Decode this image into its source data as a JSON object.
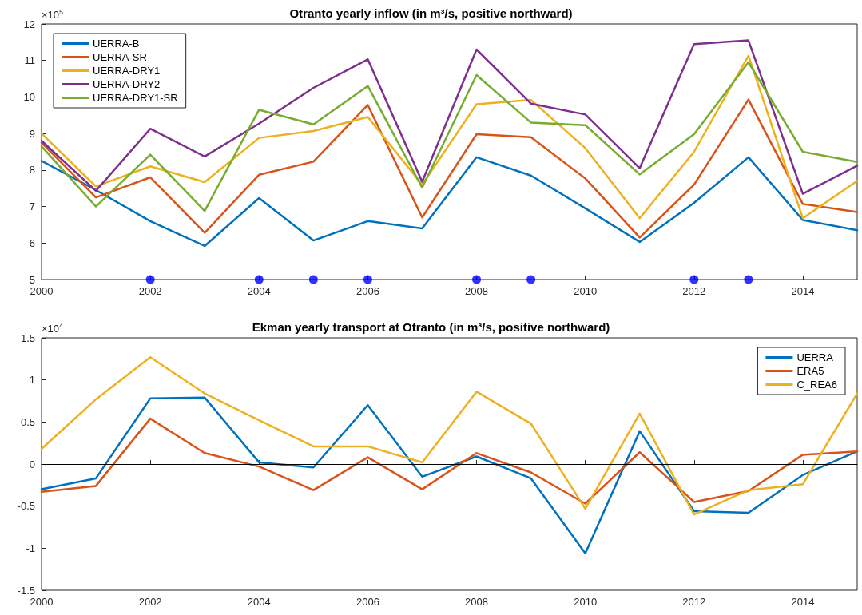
{
  "chart_data": [
    {
      "type": "line",
      "title": "Otranto yearly inflow (in m³/s, positive northward)",
      "annotations": [
        "×10$^{5}$"
      ],
      "x": [
        2000,
        2001,
        2002,
        2003,
        2004,
        2005,
        2006,
        2007,
        2008,
        2009,
        2010,
        2011,
        2012,
        2013,
        2014,
        2015
      ],
      "xlim": [
        2000,
        2015
      ],
      "xticks": [
        2000,
        2002,
        2004,
        2006,
        2008,
        2010,
        2012,
        2014
      ],
      "ylim": [
        5,
        12
      ],
      "yticks": [
        5,
        6,
        7,
        8,
        9,
        10,
        11,
        12
      ],
      "grid": false,
      "legend": "top left",
      "marker": "none",
      "line_style": "solid",
      "series": [
        {
          "name": "UERRA-B",
          "color": "#0072bd",
          "values": [
            8.25,
            7.45,
            6.6,
            5.92,
            7.23,
            6.07,
            6.6,
            6.4,
            8.35,
            7.85,
            6.95,
            6.03,
            7.1,
            8.35,
            6.63,
            6.35
          ]
        },
        {
          "name": "UERRA-SR",
          "color": "#d95319",
          "values": [
            8.75,
            7.25,
            7.8,
            6.28,
            7.87,
            8.23,
            9.78,
            6.7,
            8.98,
            8.9,
            7.77,
            6.15,
            7.6,
            9.93,
            7.07,
            6.85
          ]
        },
        {
          "name": "UERRA-DRY1",
          "color": "#edb120",
          "values": [
            9.0,
            7.55,
            8.1,
            7.67,
            8.88,
            9.07,
            9.45,
            7.6,
            9.8,
            9.92,
            8.6,
            6.68,
            8.5,
            11.13,
            6.68,
            7.7
          ]
        },
        {
          "name": "UERRA-DRY2",
          "color": "#7e2f8e",
          "values": [
            8.8,
            7.43,
            9.13,
            8.37,
            9.27,
            10.25,
            11.03,
            7.68,
            11.3,
            9.82,
            9.52,
            8.05,
            11.45,
            11.55,
            7.35,
            8.12
          ]
        },
        {
          "name": "UERRA-DRY1-SR",
          "color": "#77ac30",
          "values": [
            8.65,
            7.0,
            8.42,
            6.88,
            9.65,
            9.25,
            10.3,
            7.52,
            10.6,
            9.3,
            9.23,
            7.88,
            8.98,
            10.95,
            8.5,
            8.22
          ]
        },
        {
          "type": "scatter",
          "marker": "circle",
          "color": "#0000ff",
          "x": [
            2002,
            2004,
            2005,
            2006,
            2008,
            2009,
            2012,
            2013
          ],
          "values": [
            5,
            5,
            5,
            5,
            5,
            5,
            5,
            5
          ]
        }
      ]
    },
    {
      "type": "line",
      "title": "Ekman yearly transport at Otranto (in m³/s, positive northward)",
      "annotations": [
        "×10$^{4}$"
      ],
      "x": [
        2000,
        2001,
        2002,
        2003,
        2004,
        2005,
        2006,
        2007,
        2008,
        2009,
        2010,
        2011,
        2012,
        2013,
        2014,
        2015
      ],
      "xlim": [
        2000,
        2015
      ],
      "xticks": [
        2000,
        2002,
        2004,
        2006,
        2008,
        2010,
        2012,
        2014
      ],
      "ylim": [
        -1.5,
        1.5
      ],
      "yticks": [
        -1.5,
        -1,
        -0.5,
        0,
        0.5,
        1,
        1.5
      ],
      "grid": false,
      "legend": "top right",
      "marker": "none",
      "line_style": "solid",
      "ref_lines": [
        {
          "axis": "y",
          "value": 0,
          "color": "#000000"
        }
      ],
      "series": [
        {
          "name": "UERRA",
          "color": "#0072bd",
          "values": [
            -0.3,
            -0.17,
            0.78,
            0.79,
            0.02,
            -0.04,
            0.7,
            -0.15,
            0.09,
            -0.17,
            -1.06,
            0.39,
            -0.56,
            -0.58,
            -0.13,
            0.15
          ]
        },
        {
          "name": "ERA5",
          "color": "#d95319",
          "values": [
            -0.33,
            -0.26,
            0.54,
            0.13,
            -0.03,
            -0.31,
            0.08,
            -0.3,
            0.13,
            -0.1,
            -0.47,
            0.14,
            -0.45,
            -0.32,
            0.11,
            0.15
          ]
        },
        {
          "name": "C_REA6",
          "color": "#edb120",
          "values": [
            0.18,
            0.77,
            1.27,
            0.84,
            0.52,
            0.21,
            0.21,
            0.02,
            0.86,
            0.48,
            -0.53,
            0.6,
            -0.6,
            -0.31,
            -0.24,
            0.84
          ]
        }
      ]
    }
  ]
}
